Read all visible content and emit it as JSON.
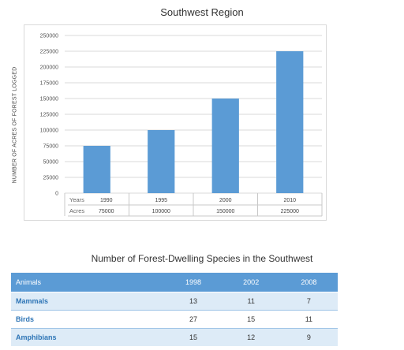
{
  "chart_data": {
    "type": "bar",
    "title": "Southwest Region",
    "ylabel": "NUMBER OF ACRES OF FOREST LOGGED",
    "ylim": [
      0,
      250000
    ],
    "yticks": [
      0,
      25000,
      50000,
      75000,
      100000,
      125000,
      150000,
      175000,
      200000,
      225000,
      250000
    ],
    "categories": [
      "1990",
      "1995",
      "2000",
      "2010"
    ],
    "values": [
      75000,
      100000,
      150000,
      225000
    ],
    "grid": true,
    "color": "#5b9bd5",
    "data_table": {
      "row1_label": "Years",
      "row2_label": "Acres",
      "row2_values": [
        "75000",
        "100000",
        "150000",
        "225000"
      ]
    }
  },
  "species_table": {
    "title": "Number of Forest-Dwelling Species in the Southwest",
    "header": [
      "Animals",
      "1998",
      "2002",
      "2008"
    ],
    "rows": [
      {
        "name": "Mammals",
        "values": [
          "13",
          "11",
          "7"
        ]
      },
      {
        "name": "Birds",
        "values": [
          "27",
          "15",
          "11"
        ]
      },
      {
        "name": "Amphibians",
        "values": [
          "15",
          "12",
          "9"
        ]
      }
    ],
    "header_color": "#5b9bd5",
    "band_color": "#ddebf7"
  }
}
